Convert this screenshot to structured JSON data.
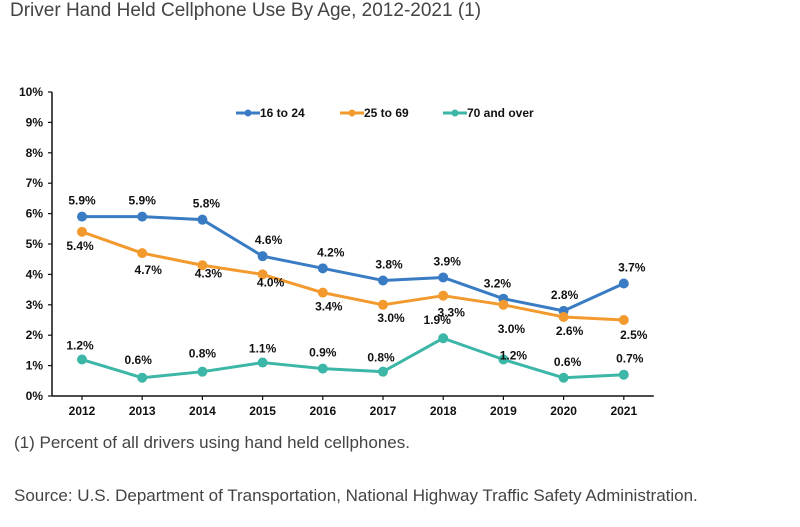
{
  "title": "Driver Hand Held Cellphone Use By Age, 2012-2021 (1)",
  "footnote": "(1) Percent of all drivers using hand held cellphones.",
  "source": "Source: U.S. Department of Transportation, National Highway Traffic Safety Administration.",
  "chart_data": {
    "type": "line",
    "title": "",
    "xlabel": "",
    "ylabel": "",
    "categories": [
      "2012",
      "2013",
      "2014",
      "2015",
      "2016",
      "2017",
      "2018",
      "2019",
      "2020",
      "2021"
    ],
    "ylim": [
      0,
      10
    ],
    "yticks": [
      "0%",
      "1%",
      "2%",
      "3%",
      "4%",
      "5%",
      "6%",
      "7%",
      "8%",
      "9%",
      "10%"
    ],
    "grid": false,
    "legend_position": "top",
    "series": [
      {
        "name": "16 to 24",
        "color": "#3a7cc4",
        "values": [
          5.9,
          5.9,
          5.8,
          4.6,
          4.2,
          3.8,
          3.9,
          3.2,
          2.8,
          3.7
        ],
        "labels": [
          "5.9%",
          "5.9%",
          "5.8%",
          "4.6%",
          "4.2%",
          "3.8%",
          "3.9%",
          "3.2%",
          "2.8%",
          "3.7%"
        ]
      },
      {
        "name": "25 to 69",
        "color": "#f39a2e",
        "values": [
          5.4,
          4.7,
          4.3,
          4.0,
          3.4,
          3.0,
          3.3,
          3.0,
          2.6,
          2.5
        ],
        "labels": [
          "5.4%",
          "4.7%",
          "4.3%",
          "4.0%",
          "3.4%",
          "3.0%",
          "3.3%",
          "3.0%",
          "2.6%",
          "2.5%"
        ]
      },
      {
        "name": "70 and over",
        "color": "#3cb6a6",
        "values": [
          1.2,
          0.6,
          0.8,
          1.1,
          0.9,
          0.8,
          1.9,
          1.2,
          0.6,
          0.7
        ],
        "labels": [
          "1.2%",
          "0.6%",
          "0.8%",
          "1.1%",
          "0.9%",
          "0.8%",
          "1.9%",
          "1.2%",
          "0.6%",
          "0.7%"
        ]
      }
    ]
  }
}
